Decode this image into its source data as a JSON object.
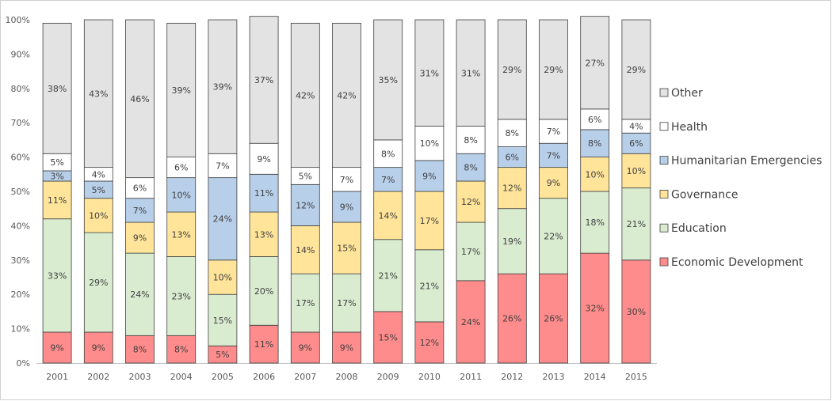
{
  "chart_data": {
    "type": "bar",
    "stacked": "percent",
    "title": "",
    "xlabel": "",
    "ylabel": "",
    "ylim": [
      0,
      100
    ],
    "grid": false,
    "legend_position": "right",
    "categories": [
      "2001",
      "2002",
      "2003",
      "2004",
      "2005",
      "2006",
      "2007",
      "2008",
      "2009",
      "2010",
      "2011",
      "2012",
      "2013",
      "2014",
      "2015"
    ],
    "y_ticks": [
      "0%",
      "10%",
      "20%",
      "30%",
      "40%",
      "50%",
      "60%",
      "70%",
      "80%",
      "90%",
      "100%"
    ],
    "series": [
      {
        "name": "Economic Development",
        "color": "#ff8c8c",
        "values": [
          9,
          9,
          8,
          8,
          5,
          11,
          9,
          9,
          15,
          12,
          24,
          26,
          26,
          32,
          30
        ]
      },
      {
        "name": "Education",
        "color": "#d9ecd0",
        "values": [
          33,
          29,
          24,
          23,
          15,
          20,
          17,
          17,
          21,
          21,
          17,
          19,
          22,
          18,
          21
        ]
      },
      {
        "name": "Governance",
        "color": "#ffe499",
        "values": [
          11,
          10,
          9,
          13,
          10,
          13,
          14,
          15,
          14,
          17,
          12,
          12,
          9,
          10,
          10
        ]
      },
      {
        "name": "Humanitarian Emergencies",
        "color": "#b8cfea",
        "values": [
          3,
          5,
          7,
          10,
          24,
          11,
          12,
          9,
          7,
          9,
          8,
          6,
          7,
          8,
          6
        ]
      },
      {
        "name": "Health",
        "color": "#ffffff",
        "values": [
          5,
          4,
          6,
          6,
          7,
          9,
          5,
          7,
          8,
          10,
          8,
          8,
          7,
          6,
          4
        ]
      },
      {
        "name": "Other",
        "color": "#e3e3e3",
        "values": [
          38,
          43,
          46,
          39,
          39,
          37,
          42,
          42,
          35,
          31,
          31,
          29,
          29,
          27,
          29
        ]
      }
    ],
    "label_suffix": "%"
  }
}
